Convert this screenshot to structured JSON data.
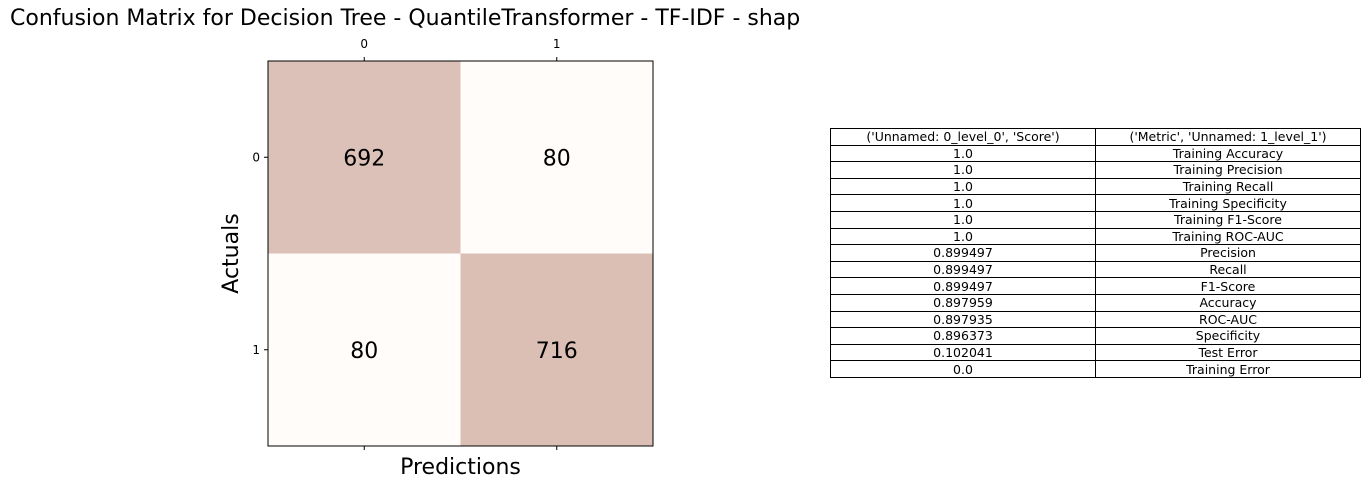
{
  "chart_data": [
    {
      "type": "heatmap",
      "title": "Confusion Matrix for Decision Tree - QuantileTransformer - TF-IDF - shap",
      "xlabel": "Predictions",
      "ylabel": "Actuals",
      "x_tick_labels": [
        "0",
        "1"
      ],
      "y_tick_labels": [
        "0",
        "1"
      ],
      "values": [
        [
          692,
          80
        ],
        [
          80,
          716
        ]
      ],
      "colors": {
        "high": "#dbbfb5",
        "low": "#fffcfa"
      }
    },
    {
      "type": "table",
      "columns": [
        "('Unnamed: 0_level_0', 'Score')",
        "('Metric', 'Unnamed: 1_level_1')"
      ],
      "rows": [
        [
          "1.0",
          "Training Accuracy"
        ],
        [
          "1.0",
          "Training Precision"
        ],
        [
          "1.0",
          "Training Recall"
        ],
        [
          "1.0",
          "Training Specificity"
        ],
        [
          "1.0",
          "Training F1-Score"
        ],
        [
          "1.0",
          "Training ROC-AUC"
        ],
        [
          "0.899497",
          "Precision"
        ],
        [
          "0.899497",
          "Recall"
        ],
        [
          "0.899497",
          "F1-Score"
        ],
        [
          "0.897959",
          "Accuracy"
        ],
        [
          "0.897935",
          "ROC-AUC"
        ],
        [
          "0.896373",
          "Specificity"
        ],
        [
          "0.102041",
          "Test Error"
        ],
        [
          "0.0",
          "Training Error"
        ]
      ]
    }
  ]
}
